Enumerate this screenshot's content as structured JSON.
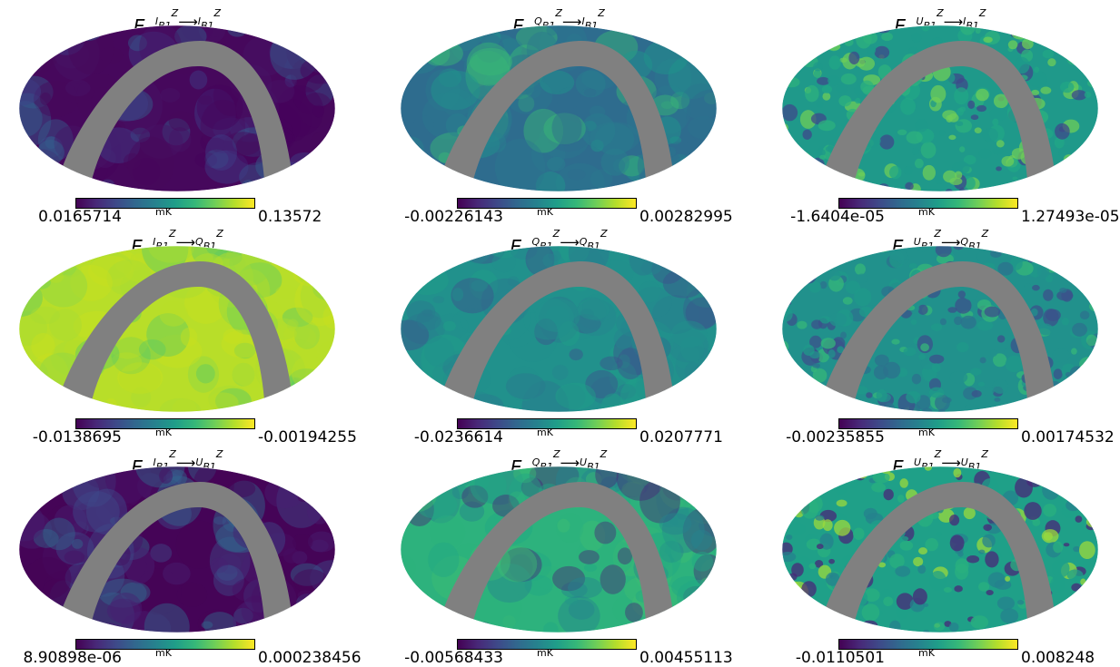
{
  "units": "mK",
  "panels": [
    {
      "row": 0,
      "col": 0,
      "title": {
        "src": "I",
        "tgt": "I"
      },
      "vmin": "0.0165714",
      "vmax": "0.13572",
      "palette": [
        "#46085c",
        "#45035a",
        "#481466",
        "#3f3e88",
        "#33608d"
      ],
      "gray": "#808080",
      "style": "dark"
    },
    {
      "row": 0,
      "col": 1,
      "title": {
        "src": "Q",
        "tgt": "I"
      },
      "vmin": "-0.00226143",
      "vmax": "0.00282995",
      "palette": [
        "#2e6c8e",
        "#2a788e",
        "#27808e",
        "#1f978b",
        "#3aba76"
      ],
      "gray": "#808080",
      "style": "mid"
    },
    {
      "row": 0,
      "col": 2,
      "title": {
        "src": "U",
        "tgt": "I"
      },
      "vmin": "-1.6404e-05",
      "vmax": "1.27493e-05",
      "palette": [
        "#1f998a",
        "#22a785",
        "#2db27d",
        "#6ece58",
        "#3e4a89"
      ],
      "gray": "#808080",
      "style": "speckle"
    },
    {
      "row": 1,
      "col": 0,
      "title": {
        "src": "I",
        "tgt": "Q"
      },
      "vmin": "-0.0138695",
      "vmax": "-0.00194255",
      "palette": [
        "#b8de29",
        "#a8db34",
        "#c8e020",
        "#8fd744",
        "#5ec962"
      ],
      "gray": "#808080",
      "style": "bright"
    },
    {
      "row": 1,
      "col": 1,
      "title": {
        "src": "Q",
        "tgt": "Q"
      },
      "vmin": "-0.0236614",
      "vmax": "0.0207771",
      "palette": [
        "#21918c",
        "#25858e",
        "#1fa088",
        "#2a788e",
        "#3b528b"
      ],
      "gray": "#808080",
      "style": "mid"
    },
    {
      "row": 1,
      "col": 2,
      "title": {
        "src": "U",
        "tgt": "Q"
      },
      "vmin": "-0.00235855",
      "vmax": "0.00174532",
      "palette": [
        "#21918c",
        "#1f998a",
        "#2c728e",
        "#3b528b",
        "#35b779"
      ],
      "gray": "#808080",
      "style": "speckle"
    },
    {
      "row": 2,
      "col": 0,
      "title": {
        "src": "I",
        "tgt": "U"
      },
      "vmin": "8.90898e-06",
      "vmax": "0.000238456",
      "palette": [
        "#450457",
        "#471063",
        "#482071",
        "#3e4989",
        "#31688e"
      ],
      "gray": "#808080",
      "style": "dark"
    },
    {
      "row": 2,
      "col": 1,
      "title": {
        "src": "Q",
        "tgt": "U"
      },
      "vmin": "-0.00568433",
      "vmax": "0.00455113",
      "palette": [
        "#2db27d",
        "#22a785",
        "#26828e",
        "#3dbc74",
        "#482878"
      ],
      "gray": "#808080",
      "style": "mid"
    },
    {
      "row": 2,
      "col": 2,
      "title": {
        "src": "U",
        "tgt": "U"
      },
      "vmin": "-0.0110501",
      "vmax": "0.008248",
      "palette": [
        "#1fa088",
        "#2ab07f",
        "#26828e",
        "#482878",
        "#9bd93c"
      ],
      "gray": "#808080",
      "style": "speckle"
    }
  ]
}
